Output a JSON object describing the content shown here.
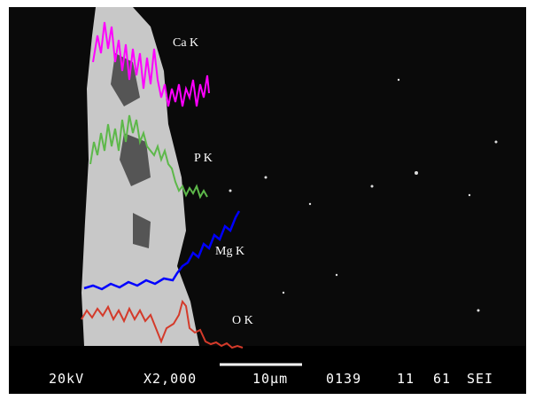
{
  "labels": {
    "ca": "Ca K",
    "p": "P K",
    "mg": "Mg K",
    "o": "O K"
  },
  "info_bar": {
    "voltage": "20kV",
    "magnification": "X2,000",
    "scale": "10μm",
    "number": "0139",
    "field1": "11",
    "field2": "61",
    "mode": "SEI"
  }
}
